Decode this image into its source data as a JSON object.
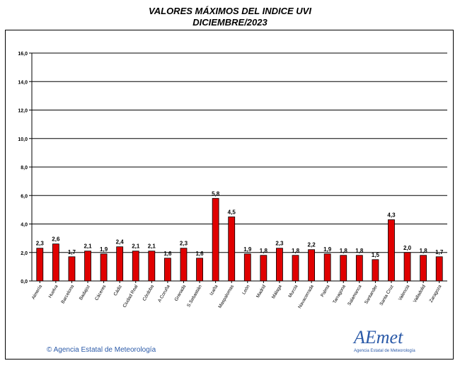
{
  "header": {
    "title_line1": "VALORES MÁXIMOS DEL INDICE UVI",
    "title_line2": "DICIEMBRE/2023"
  },
  "footer": {
    "copyright": "© Agencia Estatal de Meteorología",
    "logo_text": "AEmet",
    "logo_subtext": "Agencia Estatal de Meteorología"
  },
  "colors": {
    "bar": "#e00000",
    "grid": "#000000",
    "text": "#000000",
    "brand": "#2b5aa8"
  },
  "chart_data": {
    "type": "bar",
    "title": "VALORES MÁXIMOS DEL INDICE UVI DICIEMBRE/2023",
    "xlabel": "",
    "ylabel": "",
    "ylim": [
      0,
      16
    ],
    "yticks": [
      "0,0",
      "2,0",
      "4,0",
      "6,0",
      "8,0",
      "10,0",
      "12,0",
      "14,0",
      "16,0"
    ],
    "grid": true,
    "categories": [
      "Almería",
      "Huelva",
      "Barcelona",
      "Badajoz",
      "Cáceres",
      "Cádiz",
      "Ciudad Real",
      "Córdoba",
      "A Coruña",
      "Granada",
      "S.Sebastián",
      "Izaña",
      "Maspalomas",
      "León",
      "Madrid",
      "Málaga",
      "Murcia",
      "Navacerrada",
      "Palma",
      "Tarragona",
      "Salamanca",
      "Santander",
      "Santa Cruz",
      "Valencia",
      "Valladolid",
      "Zaragoza"
    ],
    "values": [
      2.3,
      2.6,
      1.7,
      2.1,
      1.9,
      2.4,
      2.1,
      2.1,
      1.6,
      2.3,
      1.6,
      5.8,
      4.5,
      1.9,
      1.8,
      2.3,
      1.8,
      2.2,
      1.9,
      1.8,
      1.8,
      1.5,
      4.3,
      2.0,
      1.8,
      1.7
    ],
    "labels": [
      "2,3",
      "2,6",
      "1,7",
      "2,1",
      "1,9",
      "2,4",
      "2,1",
      "2,1",
      "1,6",
      "2,3",
      "1,6",
      "5,8",
      "4,5",
      "1,9",
      "1,8",
      "2,3",
      "1,8",
      "2,2",
      "1,9",
      "1,8",
      "1,8",
      "1,5",
      "4,3",
      "2,0",
      "1,8",
      "1,7"
    ]
  }
}
